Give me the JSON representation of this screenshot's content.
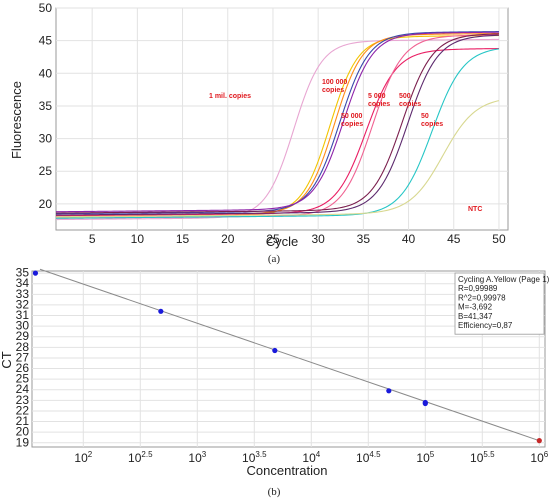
{
  "chart_data": [
    {
      "type": "line",
      "panel_label": "(a)",
      "xlabel": "Cycle",
      "ylabel": "Fluorescence",
      "xlim": [
        1,
        51
      ],
      "ylim": [
        16,
        50
      ],
      "xticks": [
        5,
        10,
        15,
        20,
        25,
        30,
        35,
        40,
        45,
        50
      ],
      "yticks": [
        20,
        25,
        30,
        35,
        40,
        45,
        50
      ],
      "grid": true,
      "annotations": [
        {
          "text": "1 mil. copies",
          "series": "1 mil. copies"
        },
        {
          "text": "100 000 copies",
          "series": "100 000 copies"
        },
        {
          "text": "50 000 copies",
          "series": "50 000 copies"
        },
        {
          "text": "5 000 copies",
          "series": "5 000 copies"
        },
        {
          "text": "500 copies",
          "series": "500 copies"
        },
        {
          "text": "50 copies",
          "series": "50 copies"
        },
        {
          "text": "NTC",
          "series": "NTC"
        }
      ],
      "series": [
        {
          "key": "1 mil. copies",
          "color": "#e8a6d2",
          "baseline": 17.6,
          "plateau": 44.6,
          "midpoint": 27.3,
          "slope": 0.65
        },
        {
          "key": "100 000 copies",
          "color": "#f2c400",
          "baseline": 18.0,
          "plateau": 45.2,
          "midpoint": 31.3,
          "slope": 0.65
        },
        {
          "key": "100 000 copies b",
          "color": "#ff8c1a",
          "baseline": 18.2,
          "plateau": 45.5,
          "midpoint": 31.8,
          "slope": 0.65
        },
        {
          "key": "50 000 copies",
          "color": "#3949ab",
          "baseline": 18.5,
          "plateau": 45.8,
          "midpoint": 32.4,
          "slope": 0.62
        },
        {
          "key": "50 000 copies b",
          "color": "#8e24aa",
          "baseline": 18.8,
          "plateau": 45.7,
          "midpoint": 32.8,
          "slope": 0.62
        },
        {
          "key": "5 000 copies",
          "color": "#e91e63",
          "baseline": 18.2,
          "plateau": 43.2,
          "midpoint": 35.3,
          "slope": 0.6
        },
        {
          "key": "5 000 copies b",
          "color": "#f06292",
          "baseline": 17.8,
          "plateau": 45.3,
          "midpoint": 36.0,
          "slope": 0.6
        },
        {
          "key": "500 copies",
          "color": "#7b1f4e",
          "baseline": 18.6,
          "plateau": 45.5,
          "midpoint": 39.3,
          "slope": 0.6
        },
        {
          "key": "500 copies b",
          "color": "#5d2a6e",
          "baseline": 18.3,
          "plateau": 45.3,
          "midpoint": 39.9,
          "slope": 0.6
        },
        {
          "key": "50 copies",
          "color": "#26c6c6",
          "baseline": 17.8,
          "plateau": 43.5,
          "midpoint": 42.6,
          "slope": 0.58
        },
        {
          "key": "NTC",
          "color": "#d8d890",
          "baseline": 18.0,
          "plateau": 35.8,
          "midpoint": 43.8,
          "slope": 0.55
        }
      ]
    },
    {
      "type": "scatter",
      "panel_label": "(b)",
      "xlabel": "Concentration",
      "ylabel": "CT",
      "x_scale": "log10",
      "xlim_exp": [
        1.55,
        6.05
      ],
      "ylim": [
        18.6,
        35.2
      ],
      "xticks": [
        {
          "label": "10",
          "sup": "2",
          "exp": 2.0
        },
        {
          "label": "10",
          "sup": "2.5",
          "exp": 2.5
        },
        {
          "label": "10",
          "sup": "3",
          "exp": 3.0
        },
        {
          "label": "10",
          "sup": "3.5",
          "exp": 3.5
        },
        {
          "label": "10",
          "sup": "4",
          "exp": 4.0
        },
        {
          "label": "10",
          "sup": "4.5",
          "exp": 4.5
        },
        {
          "label": "10",
          "sup": "5",
          "exp": 5.0
        },
        {
          "label": "10",
          "sup": "5.5",
          "exp": 5.5
        },
        {
          "label": "10",
          "sup": "6",
          "exp": 6.0
        }
      ],
      "yticks": [
        19,
        20,
        21,
        22,
        23,
        24,
        25,
        26,
        27,
        28,
        29,
        30,
        31,
        32,
        33,
        34,
        35
      ],
      "grid": true,
      "points": [
        {
          "x_exp": 1.58,
          "y": 35.0,
          "color": "#1a1adb"
        },
        {
          "x_exp": 2.68,
          "y": 31.4,
          "color": "#1a1adb"
        },
        {
          "x_exp": 3.68,
          "y": 27.7,
          "color": "#1a1adb"
        },
        {
          "x_exp": 4.68,
          "y": 23.9,
          "color": "#1a1adb"
        },
        {
          "x_exp": 5.0,
          "y": 22.8,
          "color": "#1a1adb"
        },
        {
          "x_exp": 5.0,
          "y": 22.7,
          "color": "#1a1adb"
        },
        {
          "x_exp": 6.0,
          "y": 19.2,
          "color": "#c62828"
        }
      ],
      "fit_line": {
        "from_exp": 1.62,
        "to_exp": 6.0,
        "slope": -3.692,
        "intercept": 41.347
      },
      "info_box": {
        "placement": "top-right",
        "lines": [
          "Cycling A.Yellow (Page 1):",
          "R=0,99989",
          "R^2=0,99978",
          "M=-3,692",
          "B=41,347",
          "Efficiency=0,87"
        ]
      }
    }
  ]
}
